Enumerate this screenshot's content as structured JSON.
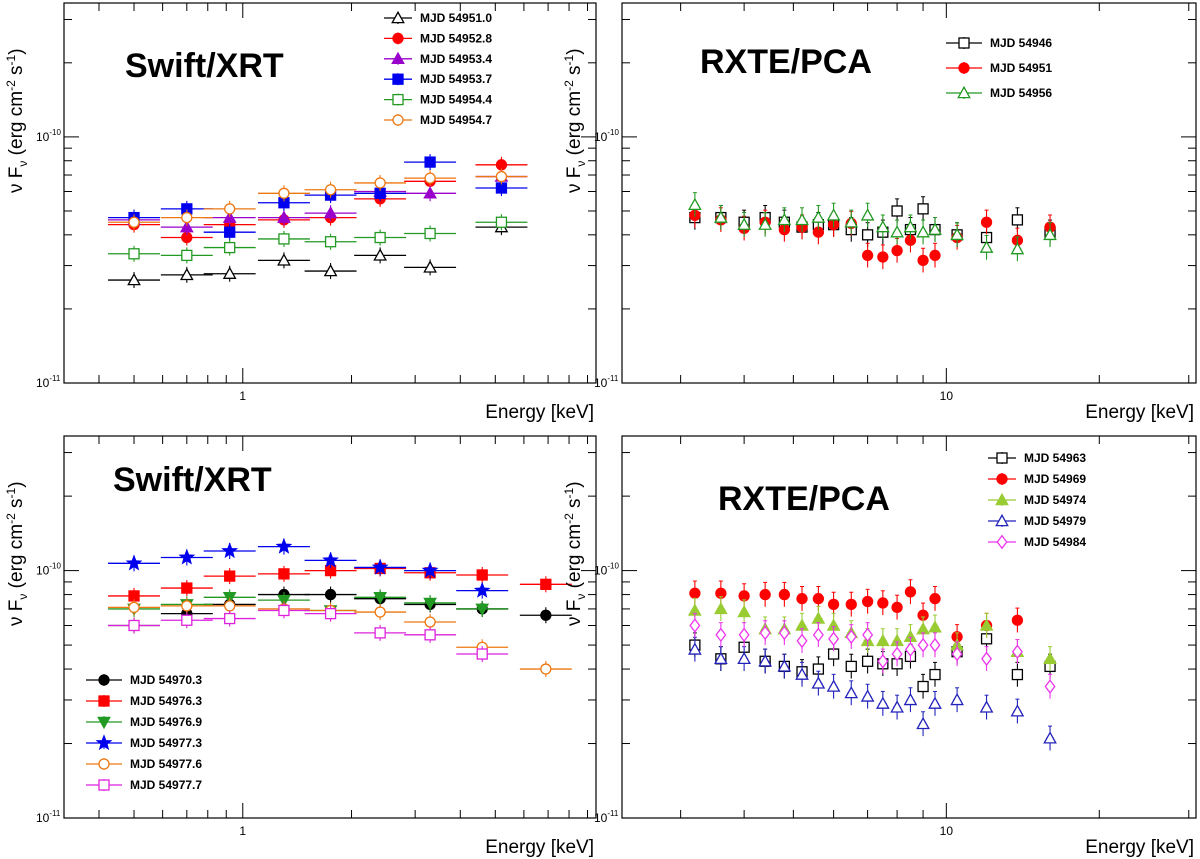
{
  "chart_data": [
    {
      "type": "scatter",
      "title": "Swift/XRT",
      "ylabel": "ν F_ν (erg cm^-2 s^-1)",
      "xlabel": "Energy [keV]",
      "xscale": "log",
      "yscale": "log",
      "xlim": [
        0.32,
        9.5
      ],
      "ylim": [
        1e-11,
        3.5e-10
      ],
      "xticks": [
        {
          "value": 1,
          "label": "1"
        }
      ],
      "yticks": [
        {
          "value": 1e-11,
          "label": "10",
          "exp": "-11"
        },
        {
          "value": 1e-10,
          "label": "10",
          "exp": "-10"
        }
      ],
      "legend": "top-right",
      "series": [
        {
          "name": "MJD 54951.0",
          "color": "#000000",
          "marker": "triangle-up",
          "filled": false,
          "x": [
            0.5,
            0.7,
            0.92,
            1.3,
            1.75,
            2.4,
            3.3,
            5.2
          ],
          "y": [
            2.62e-11,
            2.75e-11,
            2.78e-11,
            3.15e-11,
            2.85e-11,
            3.3e-11,
            2.95e-11,
            4.3e-11
          ]
        },
        {
          "name": "MJD 54952.8",
          "color": "#ff0000",
          "marker": "circle",
          "filled": true,
          "x": [
            0.5,
            0.7,
            0.92,
            1.3,
            1.75,
            2.4,
            3.3,
            5.2
          ],
          "y": [
            4.4e-11,
            3.9e-11,
            4.4e-11,
            4.6e-11,
            4.7e-11,
            5.6e-11,
            6.6e-11,
            7.7e-11
          ]
        },
        {
          "name": "MJD 54953.4",
          "color": "#9900cc",
          "marker": "triangle-up",
          "filled": true,
          "x": [
            0.5,
            0.7,
            0.92,
            1.3,
            1.75,
            2.4,
            3.3,
            5.2
          ],
          "y": [
            4.6e-11,
            4.3e-11,
            4.7e-11,
            4.7e-11,
            4.9e-11,
            6e-11,
            5.9e-11,
            6.9e-11
          ]
        },
        {
          "name": "MJD 54953.7",
          "color": "#0000ee",
          "marker": "square",
          "filled": true,
          "x": [
            0.5,
            0.7,
            0.92,
            1.3,
            1.75,
            2.4,
            3.3,
            5.2
          ],
          "y": [
            4.7e-11,
            5.1e-11,
            4.1e-11,
            5.4e-11,
            5.8e-11,
            5.9e-11,
            7.9e-11,
            6.2e-11
          ]
        },
        {
          "name": "MJD 54954.4",
          "color": "#229922",
          "marker": "square",
          "filled": false,
          "x": [
            0.5,
            0.7,
            0.92,
            1.3,
            1.75,
            2.4,
            3.3,
            5.2
          ],
          "y": [
            3.35e-11,
            3.3e-11,
            3.55e-11,
            3.85e-11,
            3.75e-11,
            3.9e-11,
            4.05e-11,
            4.5e-11
          ]
        },
        {
          "name": "MJD 54954.7",
          "color": "#ee7711",
          "marker": "circle",
          "filled": false,
          "x": [
            0.5,
            0.7,
            0.92,
            1.3,
            1.75,
            2.4,
            3.3,
            5.2
          ],
          "y": [
            4.5e-11,
            4.7e-11,
            5.1e-11,
            5.9e-11,
            6.1e-11,
            6.5e-11,
            6.8e-11,
            6.9e-11
          ]
        }
      ]
    },
    {
      "type": "scatter",
      "title": "RXTE/PCA",
      "ylabel": "ν F_ν (erg cm^-2 s^-1)",
      "xlabel": "Energy [keV]",
      "xscale": "log",
      "yscale": "log",
      "xlim": [
        2.3,
        31
      ],
      "ylim": [
        1e-11,
        3.5e-10
      ],
      "xticks": [
        {
          "value": 10,
          "label": "10"
        }
      ],
      "yticks": [
        {
          "value": 1e-11,
          "label": "10",
          "exp": "-11"
        },
        {
          "value": 1e-10,
          "label": "10",
          "exp": "-10"
        }
      ],
      "legend": "top-center",
      "series": [
        {
          "name": "MJD 54946",
          "color": "#000000",
          "marker": "square",
          "filled": false,
          "x": [
            3.2,
            3.6,
            4.0,
            4.4,
            4.8,
            5.2,
            5.6,
            6.0,
            6.5,
            7.0,
            7.5,
            8.0,
            8.5,
            9.0,
            9.5,
            10.5,
            12.0,
            13.8,
            16.0
          ],
          "y": [
            4.7e-11,
            4.7e-11,
            4.5e-11,
            4.7e-11,
            4.5e-11,
            4.3e-11,
            4.4e-11,
            4.4e-11,
            4.2e-11,
            4e-11,
            4.1e-11,
            5e-11,
            4.2e-11,
            5.1e-11,
            4.2e-11,
            4e-11,
            3.9e-11,
            4.6e-11,
            4.1e-11
          ]
        },
        {
          "name": "MJD 54951",
          "color": "#ff0000",
          "marker": "circle",
          "filled": true,
          "x": [
            3.2,
            3.6,
            4.0,
            4.4,
            4.8,
            5.2,
            5.6,
            6.0,
            6.5,
            7.0,
            7.5,
            8.0,
            8.5,
            9.0,
            9.5,
            10.5,
            12.0,
            13.8,
            16.0
          ],
          "y": [
            4.8e-11,
            4.6e-11,
            4.25e-11,
            4.5e-11,
            4.2e-11,
            4.3e-11,
            4.1e-11,
            4.4e-11,
            4.45e-11,
            3.3e-11,
            3.25e-11,
            3.45e-11,
            3.8e-11,
            3.15e-11,
            3.3e-11,
            3.9e-11,
            4.5e-11,
            3.8e-11,
            4.3e-11
          ]
        },
        {
          "name": "MJD 54956",
          "color": "#229922",
          "marker": "triangle-up",
          "filled": false,
          "x": [
            3.2,
            3.6,
            4.0,
            4.4,
            4.8,
            5.2,
            5.6,
            6.0,
            6.5,
            7.0,
            7.5,
            8.0,
            8.5,
            9.0,
            9.5,
            10.5,
            12.0,
            13.8,
            16.0
          ],
          "y": [
            5.3e-11,
            4.7e-11,
            4.4e-11,
            4.4e-11,
            4.6e-11,
            4.6e-11,
            4.7e-11,
            4.8e-11,
            4.5e-11,
            4.8e-11,
            4.3e-11,
            4.1e-11,
            4.3e-11,
            4.1e-11,
            4.2e-11,
            4e-11,
            3.55e-11,
            3.5e-11,
            4e-11
          ]
        }
      ]
    },
    {
      "type": "scatter",
      "title": "Swift/XRT",
      "ylabel": "ν F_ν (erg cm^-2 s^-1)",
      "xlabel": "Energy [keV]",
      "xscale": "log",
      "yscale": "log",
      "xlim": [
        0.32,
        9.5
      ],
      "ylim": [
        1e-11,
        3.5e-10
      ],
      "xticks": [
        {
          "value": 1,
          "label": "1"
        }
      ],
      "yticks": [
        {
          "value": 1e-11,
          "label": "10",
          "exp": "-11"
        },
        {
          "value": 1e-10,
          "label": "10",
          "exp": "-10"
        }
      ],
      "legend": "bottom-left",
      "series": [
        {
          "name": "MJD 54970.3",
          "color": "#000000",
          "marker": "circle",
          "filled": true,
          "x": [
            0.5,
            0.7,
            0.92,
            1.3,
            1.75,
            2.4,
            3.3,
            4.6,
            6.9
          ],
          "y": [
            6e-11,
            6.7e-11,
            7.3e-11,
            8e-11,
            8e-11,
            7.7e-11,
            7.3e-11,
            7e-11,
            6.6e-11
          ]
        },
        {
          "name": "MJD 54976.3",
          "color": "#ff0000",
          "marker": "square",
          "filled": true,
          "x": [
            0.5,
            0.7,
            0.92,
            1.3,
            1.75,
            2.4,
            3.3,
            4.6,
            6.9
          ],
          "y": [
            7.9e-11,
            8.5e-11,
            9.5e-11,
            9.7e-11,
            1e-10,
            1.02e-10,
            9.8e-11,
            9.6e-11,
            8.8e-11
          ]
        },
        {
          "name": "MJD 54976.9",
          "color": "#229922",
          "marker": "triangle-down",
          "filled": true,
          "x": [
            0.5,
            0.7,
            0.92,
            1.3,
            1.75,
            2.4,
            3.3,
            4.6
          ],
          "y": [
            7e-11,
            7.3e-11,
            7.8e-11,
            7.6e-11,
            6.9e-11,
            7.8e-11,
            7.4e-11,
            7e-11
          ]
        },
        {
          "name": "MJD 54977.3",
          "color": "#0000ee",
          "marker": "star",
          "filled": true,
          "x": [
            0.5,
            0.7,
            0.92,
            1.3,
            1.75,
            2.4,
            3.3,
            4.6
          ],
          "y": [
            1.07e-10,
            1.13e-10,
            1.2e-10,
            1.25e-10,
            1.1e-10,
            1.03e-10,
            1e-10,
            8.3e-11
          ]
        },
        {
          "name": "MJD 54977.6",
          "color": "#ee7711",
          "marker": "circle",
          "filled": false,
          "x": [
            0.5,
            0.7,
            0.92,
            1.3,
            1.75,
            2.4,
            3.3,
            4.6,
            6.9
          ],
          "y": [
            7.1e-11,
            7.2e-11,
            7.2e-11,
            7e-11,
            6.9e-11,
            6.8e-11,
            6.2e-11,
            4.9e-11,
            4e-11
          ]
        },
        {
          "name": "MJD 54977.7",
          "color": "#dd22dd",
          "marker": "square",
          "filled": false,
          "x": [
            0.5,
            0.7,
            0.92,
            1.3,
            1.75,
            2.4,
            3.3,
            4.6
          ],
          "y": [
            6e-11,
            6.3e-11,
            6.4e-11,
            6.9e-11,
            6.7e-11,
            5.6e-11,
            5.5e-11,
            4.6e-11
          ]
        }
      ]
    },
    {
      "type": "scatter",
      "title": "RXTE/PCA",
      "ylabel": "ν F_ν (erg cm^-2 s^-1)",
      "xlabel": "Energy [keV]",
      "xscale": "log",
      "yscale": "log",
      "xlim": [
        2.3,
        31
      ],
      "ylim": [
        1e-11,
        3.5e-10
      ],
      "xticks": [
        {
          "value": 10,
          "label": "10"
        }
      ],
      "yticks": [
        {
          "value": 1e-11,
          "label": "10",
          "exp": "-11"
        },
        {
          "value": 1e-10,
          "label": "10",
          "exp": "-10"
        }
      ],
      "legend": "top-right",
      "series": [
        {
          "name": "MJD 54963",
          "color": "#000000",
          "marker": "square",
          "filled": false,
          "x": [
            3.2,
            3.6,
            4.0,
            4.4,
            4.8,
            5.2,
            5.6,
            6.0,
            6.5,
            7.0,
            7.5,
            8.0,
            8.5,
            9.0,
            9.5,
            10.5,
            12.0,
            13.8,
            16.0
          ],
          "y": [
            5e-11,
            4.4e-11,
            4.9e-11,
            4.3e-11,
            4.1e-11,
            3.9e-11,
            4e-11,
            4.6e-11,
            4.1e-11,
            4.3e-11,
            4.2e-11,
            4.2e-11,
            4.5e-11,
            3.4e-11,
            3.8e-11,
            4.7e-11,
            5.3e-11,
            3.8e-11,
            4.1e-11
          ]
        },
        {
          "name": "MJD 54969",
          "color": "#ff0000",
          "marker": "circle",
          "filled": true,
          "x": [
            3.2,
            3.6,
            4.0,
            4.4,
            4.8,
            5.2,
            5.6,
            6.0,
            6.5,
            7.0,
            7.5,
            8.0,
            8.5,
            9.0,
            9.5,
            10.5,
            12.0,
            13.8
          ],
          "y": [
            8.1e-11,
            8.1e-11,
            7.9e-11,
            8e-11,
            8e-11,
            7.7e-11,
            7.7e-11,
            7.3e-11,
            7.3e-11,
            7.5e-11,
            7.4e-11,
            7.1e-11,
            8.2e-11,
            6.6e-11,
            7.7e-11,
            5.4e-11,
            6e-11,
            6.3e-11
          ]
        },
        {
          "name": "MJD 54974",
          "color": "#99cc33",
          "marker": "triangle-up",
          "filled": true,
          "x": [
            3.2,
            3.6,
            4.0,
            4.4,
            4.8,
            5.2,
            5.6,
            6.0,
            6.5,
            7.0,
            7.5,
            8.0,
            8.5,
            9.0,
            9.5,
            10.5,
            12.0,
            13.8,
            16.0
          ],
          "y": [
            6.9e-11,
            7e-11,
            6.8e-11,
            5.8e-11,
            5.8e-11,
            6e-11,
            6.4e-11,
            6e-11,
            5.6e-11,
            5.2e-11,
            5.2e-11,
            5.2e-11,
            5.4e-11,
            5.8e-11,
            5.9e-11,
            5e-11,
            6e-11,
            4.7e-11,
            4.4e-11
          ]
        },
        {
          "name": "MJD 54979",
          "color": "#2222bb",
          "marker": "triangle-up",
          "filled": false,
          "x": [
            3.2,
            3.6,
            4.0,
            4.4,
            4.8,
            5.2,
            5.6,
            6.0,
            6.5,
            7.0,
            7.5,
            8.0,
            8.5,
            9.0,
            9.5,
            10.5,
            12.0,
            13.8,
            16.0
          ],
          "y": [
            4.8e-11,
            4.4e-11,
            4.4e-11,
            4.3e-11,
            4.1e-11,
            3.8e-11,
            3.5e-11,
            3.4e-11,
            3.2e-11,
            3.1e-11,
            2.9e-11,
            2.8e-11,
            3e-11,
            2.4e-11,
            2.9e-11,
            3e-11,
            2.8e-11,
            2.7e-11,
            2.1e-11
          ]
        },
        {
          "name": "MJD 54984",
          "color": "#ee33ee",
          "marker": "diamond",
          "filled": false,
          "x": [
            3.2,
            3.6,
            4.0,
            4.4,
            4.8,
            5.2,
            5.6,
            6.0,
            6.5,
            7.0,
            7.5,
            8.0,
            8.5,
            9.0,
            9.5,
            10.5,
            12.0,
            13.8,
            16.0
          ],
          "y": [
            6e-11,
            5.5e-11,
            5.5e-11,
            5.6e-11,
            5.6e-11,
            5.2e-11,
            5.5e-11,
            5.3e-11,
            5.4e-11,
            5.5e-11,
            4.3e-11,
            4.6e-11,
            4.8e-11,
            5e-11,
            5e-11,
            4.6e-11,
            4.4e-11,
            4.7e-11,
            3.4e-11
          ]
        }
      ]
    }
  ]
}
